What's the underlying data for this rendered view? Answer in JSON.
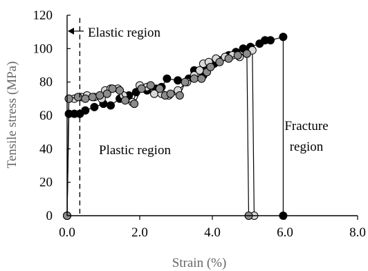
{
  "chart_data": {
    "type": "scatter",
    "xlabel": "Strain (%)",
    "ylabel": "Tensile stress (MPa)",
    "xlim": [
      0,
      8
    ],
    "ylim": [
      0,
      120
    ],
    "x_ticks": [
      0,
      2,
      4,
      6,
      8
    ],
    "x_tick_labels": [
      "0.0",
      "2.0",
      "4.0",
      "6.0",
      "8.0"
    ],
    "y_ticks": [
      0,
      20,
      40,
      60,
      80,
      100,
      120
    ],
    "y_tick_labels": [
      "0",
      "20",
      "40",
      "60",
      "80",
      "100",
      "120"
    ],
    "grid": false,
    "elastic_limit_strain": 0.35,
    "annotations": {
      "elastic": "Elastic region",
      "plastic": "Plastic region",
      "fracture_line1": "Fracture",
      "fracture_line2": "region"
    },
    "series": [
      {
        "color": "#000000",
        "fracture_strain": 5.95,
        "points": [
          [
            0.0,
            0
          ],
          [
            0.05,
            61
          ],
          [
            0.2,
            61
          ],
          [
            0.35,
            61
          ],
          [
            0.5,
            63
          ],
          [
            0.75,
            65
          ],
          [
            1.0,
            67
          ],
          [
            1.2,
            66
          ],
          [
            1.45,
            70
          ],
          [
            1.7,
            72
          ],
          [
            1.9,
            74
          ],
          [
            2.2,
            75
          ],
          [
            2.45,
            76
          ],
          [
            2.6,
            77
          ],
          [
            2.75,
            82
          ],
          [
            3.05,
            81
          ],
          [
            3.35,
            82
          ],
          [
            3.5,
            87
          ],
          [
            3.75,
            84
          ],
          [
            3.85,
            88
          ],
          [
            4.05,
            91
          ],
          [
            4.2,
            93
          ],
          [
            4.45,
            96
          ],
          [
            4.65,
            98
          ],
          [
            4.85,
            100
          ],
          [
            5.05,
            101
          ],
          [
            5.3,
            103
          ],
          [
            5.45,
            105
          ],
          [
            5.6,
            105
          ],
          [
            5.95,
            107
          ],
          [
            5.95,
            0
          ]
        ]
      },
      {
        "color": "#d9d9d9",
        "fracture_strain": 5.15,
        "points": [
          [
            0.0,
            0
          ],
          [
            0.05,
            70
          ],
          [
            0.2,
            70
          ],
          [
            0.4,
            71
          ],
          [
            0.55,
            72
          ],
          [
            0.75,
            71
          ],
          [
            0.95,
            70
          ],
          [
            1.05,
            75
          ],
          [
            1.2,
            76
          ],
          [
            1.4,
            76
          ],
          [
            1.55,
            72
          ],
          [
            1.8,
            68
          ],
          [
            2.0,
            78
          ],
          [
            2.2,
            77
          ],
          [
            2.4,
            73
          ],
          [
            2.6,
            73
          ],
          [
            2.8,
            72
          ],
          [
            3.05,
            75
          ],
          [
            3.3,
            80
          ],
          [
            3.5,
            84
          ],
          [
            3.65,
            87
          ],
          [
            3.75,
            91
          ],
          [
            3.9,
            92
          ],
          [
            4.1,
            94
          ],
          [
            4.35,
            95
          ],
          [
            4.55,
            96
          ],
          [
            4.75,
            95
          ],
          [
            4.95,
            97
          ],
          [
            5.1,
            99
          ],
          [
            5.15,
            0
          ]
        ]
      },
      {
        "color": "#8c8c8c",
        "fracture_strain": 5.0,
        "points": [
          [
            0.0,
            0
          ],
          [
            0.05,
            70
          ],
          [
            0.3,
            71
          ],
          [
            0.5,
            70
          ],
          [
            0.7,
            71
          ],
          [
            0.9,
            72
          ],
          [
            1.1,
            73
          ],
          [
            1.25,
            76
          ],
          [
            1.45,
            75
          ],
          [
            1.6,
            69
          ],
          [
            1.85,
            67
          ],
          [
            2.05,
            76
          ],
          [
            2.3,
            78
          ],
          [
            2.55,
            76
          ],
          [
            2.7,
            72
          ],
          [
            2.85,
            73
          ],
          [
            3.1,
            72
          ],
          [
            3.25,
            80
          ],
          [
            3.5,
            82
          ],
          [
            3.7,
            82
          ],
          [
            3.85,
            86
          ],
          [
            3.95,
            89
          ],
          [
            4.2,
            92
          ],
          [
            4.45,
            94
          ],
          [
            4.7,
            96
          ],
          [
            4.95,
            97
          ],
          [
            5.0,
            0
          ]
        ]
      }
    ]
  }
}
